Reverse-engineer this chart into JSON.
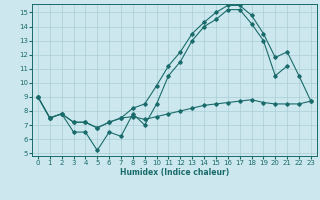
{
  "bg_color": "#cce8ee",
  "grid_color": "#aacdd5",
  "line_color": "#1a6b6b",
  "xlabel": "Humidex (Indice chaleur)",
  "xlim": [
    -0.5,
    23.5
  ],
  "ylim": [
    4.8,
    15.6
  ],
  "yticks": [
    5,
    6,
    7,
    8,
    9,
    10,
    11,
    12,
    13,
    14,
    15
  ],
  "xticks": [
    0,
    1,
    2,
    3,
    4,
    5,
    6,
    7,
    8,
    9,
    10,
    11,
    12,
    13,
    14,
    15,
    16,
    17,
    18,
    19,
    20,
    21,
    22,
    23
  ],
  "line_zigzag": {
    "x": [
      0,
      1,
      2,
      3,
      4,
      5,
      6,
      7,
      8,
      9,
      10,
      11,
      12,
      13,
      14,
      15,
      16,
      17,
      18,
      19,
      20,
      21
    ],
    "y": [
      9.0,
      7.5,
      7.8,
      6.5,
      6.5,
      5.2,
      6.5,
      6.2,
      7.8,
      7.0,
      8.5,
      10.5,
      11.5,
      13.0,
      14.0,
      14.5,
      15.2,
      15.2,
      14.2,
      13.0,
      10.5,
      11.2
    ]
  },
  "line_upper": {
    "x": [
      0,
      1,
      2,
      3,
      4,
      5,
      6,
      7,
      8,
      9,
      10,
      11,
      12,
      13,
      14,
      15,
      16,
      17,
      18,
      19,
      20,
      21,
      22,
      23
    ],
    "y": [
      9.0,
      7.5,
      7.8,
      7.2,
      7.2,
      6.8,
      7.2,
      7.5,
      8.2,
      8.5,
      9.8,
      11.2,
      12.2,
      13.5,
      14.3,
      15.0,
      15.5,
      15.5,
      14.8,
      13.5,
      11.8,
      12.2,
      10.5,
      8.7
    ]
  },
  "line_lower": {
    "x": [
      0,
      1,
      2,
      3,
      4,
      5,
      6,
      7,
      8,
      9,
      10,
      11,
      12,
      13,
      14,
      15,
      16,
      17,
      18,
      19,
      20,
      21,
      22,
      23
    ],
    "y": [
      9.0,
      7.5,
      7.8,
      7.2,
      7.2,
      6.8,
      7.2,
      7.5,
      7.6,
      7.4,
      7.6,
      7.8,
      8.0,
      8.2,
      8.4,
      8.5,
      8.6,
      8.7,
      8.8,
      8.6,
      8.5,
      8.5,
      8.5,
      8.7
    ]
  }
}
